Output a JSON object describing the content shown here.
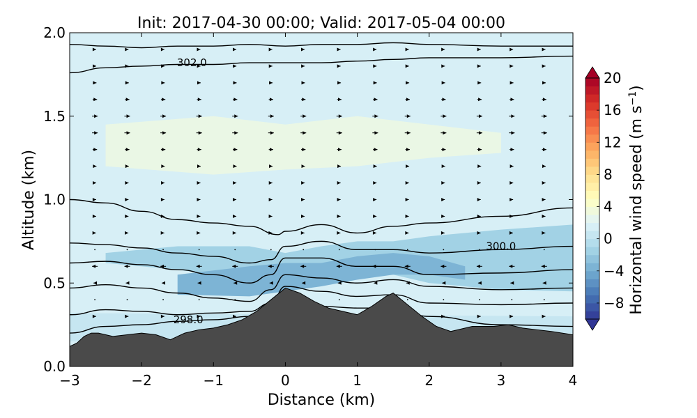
{
  "chart_data": {
    "type": "heatmap",
    "title": "Init: 2017-04-30 00:00; Valid: 2017-05-04 00:00",
    "xlabel": "Distance (km)",
    "ylabel": "Altitude (km)",
    "xlim": [
      -3,
      4
    ],
    "ylim": [
      0.0,
      2.0
    ],
    "xticks": [
      -3,
      -2,
      -1,
      0,
      1,
      2,
      3,
      4
    ],
    "xtick_labels": [
      "−3",
      "−2",
      "−1",
      "0",
      "1",
      "2",
      "3",
      "4"
    ],
    "yticks": [
      0.0,
      0.5,
      1.0,
      1.5,
      2.0
    ],
    "ytick_labels": [
      "0.0",
      "0.5",
      "1.0",
      "1.5",
      "2.0"
    ],
    "colorbar": {
      "label": "Horizontal wind speed (m s",
      "label_sup": "−1",
      "label_close": ")",
      "range": [
        -10,
        20
      ],
      "ticks": [
        -8,
        -4,
        0,
        4,
        8,
        12,
        16,
        20
      ],
      "tick_labels": [
        "−8",
        "−4",
        "0",
        "4",
        "8",
        "12",
        "16",
        "20"
      ],
      "extend": "both",
      "colormap": "RdYlBu_r"
    },
    "wind_speed_regions": [
      {
        "level": 0.5,
        "x": [
          -3,
          4
        ],
        "y_bottom": [
          0.15,
          0.2
        ],
        "y_top": [
          0.32,
          0.3
        ]
      },
      {
        "level": -1.5,
        "x": [
          -2.5,
          -1.5,
          -0.5,
          0.0,
          0.5,
          1.0,
          1.5,
          2.0,
          3.0,
          4.0
        ],
        "y_low": [
          0.62,
          0.58,
          0.52,
          0.5,
          0.52,
          0.55,
          0.55,
          0.5,
          0.46,
          0.45
        ],
        "y_high": [
          0.68,
          0.72,
          0.72,
          0.68,
          0.72,
          0.75,
          0.75,
          0.78,
          0.82,
          0.85
        ]
      },
      {
        "level": -3.5,
        "x": [
          -1.5,
          -0.5,
          0.0,
          0.5,
          1.0,
          1.5,
          2.0,
          2.5
        ],
        "y_low": [
          0.43,
          0.42,
          0.45,
          0.48,
          0.52,
          0.55,
          0.55,
          0.52
        ],
        "y_high": [
          0.55,
          0.6,
          0.62,
          0.62,
          0.66,
          0.68,
          0.66,
          0.6
        ]
      },
      {
        "level": 3.0,
        "x": [
          -2.5,
          -1.0,
          0.0,
          1.0,
          2.0,
          3.0
        ],
        "y_low": [
          1.2,
          1.15,
          1.18,
          1.2,
          1.25,
          1.28
        ],
        "y_high": [
          1.45,
          1.5,
          1.45,
          1.5,
          1.45,
          1.4
        ]
      }
    ],
    "terrain": {
      "x": [
        -3.0,
        -2.9,
        -2.8,
        -2.7,
        -2.6,
        -2.4,
        -2.2,
        -2.0,
        -1.8,
        -1.6,
        -1.4,
        -1.2,
        -1.0,
        -0.8,
        -0.6,
        -0.4,
        -0.2,
        0.0,
        0.2,
        0.4,
        0.6,
        0.8,
        1.0,
        1.2,
        1.4,
        1.5,
        1.7,
        1.9,
        2.1,
        2.3,
        2.6,
        2.9,
        3.1,
        3.3,
        3.5,
        3.7,
        4.0
      ],
      "y": [
        0.12,
        0.14,
        0.18,
        0.2,
        0.2,
        0.18,
        0.19,
        0.2,
        0.19,
        0.16,
        0.2,
        0.22,
        0.23,
        0.25,
        0.28,
        0.33,
        0.4,
        0.47,
        0.44,
        0.39,
        0.35,
        0.33,
        0.31,
        0.36,
        0.42,
        0.44,
        0.37,
        0.3,
        0.24,
        0.21,
        0.24,
        0.24,
        0.25,
        0.23,
        0.22,
        0.21,
        0.19
      ]
    },
    "isentropes": [
      {
        "x": [
          -3,
          -2.5,
          -2,
          -1.5,
          -1,
          -0.5,
          0,
          0.5,
          1,
          1.5,
          2,
          3,
          4
        ],
        "y": [
          0.2,
          0.24,
          0.25,
          0.27,
          0.28,
          0.3,
          0.35,
          0.36,
          0.35,
          0.35,
          0.3,
          0.25,
          0.24
        ]
      },
      {
        "x": [
          -3,
          -2.5,
          -2,
          -1.5,
          -1,
          -0.5,
          -0.2,
          0,
          0.5,
          1,
          1.5,
          2,
          3,
          4
        ],
        "y": [
          0.31,
          0.34,
          0.33,
          0.31,
          0.32,
          0.33,
          0.38,
          0.48,
          0.45,
          0.42,
          0.43,
          0.38,
          0.37,
          0.38
        ]
      },
      {
        "x": [
          -3,
          -2.5,
          -2,
          -1.5,
          -1,
          -0.5,
          -0.2,
          0,
          0.5,
          1,
          1.5,
          2,
          3,
          4
        ],
        "y": [
          0.47,
          0.49,
          0.47,
          0.44,
          0.41,
          0.39,
          0.46,
          0.55,
          0.53,
          0.5,
          0.52,
          0.48,
          0.46,
          0.47
        ]
      },
      {
        "x": [
          -3,
          -2.5,
          -2,
          -1.5,
          -1,
          -0.5,
          -0.2,
          0,
          0.5,
          1,
          1.5,
          2,
          3,
          4
        ],
        "y": [
          0.62,
          0.63,
          0.61,
          0.58,
          0.55,
          0.5,
          0.55,
          0.65,
          0.65,
          0.6,
          0.6,
          0.55,
          0.56,
          0.58
        ]
      },
      {
        "x": [
          -3,
          -2.5,
          -2,
          -1.5,
          -1,
          -0.5,
          -0.2,
          0,
          0.5,
          1,
          1.5,
          2,
          3,
          4
        ],
        "y": [
          0.74,
          0.73,
          0.71,
          0.68,
          0.66,
          0.62,
          0.64,
          0.72,
          0.75,
          0.7,
          0.7,
          0.68,
          0.7,
          0.72
        ]
      },
      {
        "x": [
          -3,
          -2.5,
          -2,
          -1.5,
          -1,
          -0.5,
          -0.1,
          0,
          0.5,
          1,
          1.5,
          2,
          3,
          4
        ],
        "y": [
          1.0,
          0.98,
          0.93,
          0.88,
          0.86,
          0.84,
          0.79,
          0.81,
          0.85,
          0.8,
          0.84,
          0.86,
          0.9,
          0.95
        ]
      },
      {
        "x": [
          -3,
          -2.5,
          -2,
          -1.5,
          -1,
          -0.5,
          0,
          0.5,
          1,
          1.5,
          2,
          3,
          4
        ],
        "y": [
          1.76,
          1.79,
          1.8,
          1.81,
          1.81,
          1.82,
          1.82,
          1.82,
          1.83,
          1.84,
          1.85,
          1.85,
          1.86
        ]
      },
      {
        "x": [
          -3,
          -2.5,
          -2,
          -1.5,
          -1,
          -0.5,
          0,
          0.5,
          1,
          1.5,
          2,
          3,
          4
        ],
        "y": [
          1.93,
          1.92,
          1.91,
          1.92,
          1.92,
          1.93,
          1.92,
          1.93,
          1.93,
          1.94,
          1.93,
          1.92,
          1.92
        ]
      }
    ],
    "contour_labels": [
      {
        "text": "302.0",
        "x": -1.3,
        "y": 1.82
      },
      {
        "text": "300.0",
        "x": 3.0,
        "y": 0.72
      },
      {
        "text": "298.0",
        "x": -1.35,
        "y": 0.28
      }
    ],
    "wind_vector_columns_x": [
      -2.65,
      -2.2,
      -1.7,
      -1.2,
      -0.7,
      -0.2,
      0.25,
      0.75,
      1.25,
      1.7,
      2.2,
      2.7,
      3.15,
      3.6
    ],
    "wind_vector_rows_y": [
      0.2,
      0.3,
      0.4,
      0.5,
      0.6,
      0.7,
      0.8,
      0.9,
      1.0,
      1.1,
      1.2,
      1.3,
      1.4,
      1.5,
      1.6,
      1.7,
      1.8,
      1.9
    ]
  }
}
